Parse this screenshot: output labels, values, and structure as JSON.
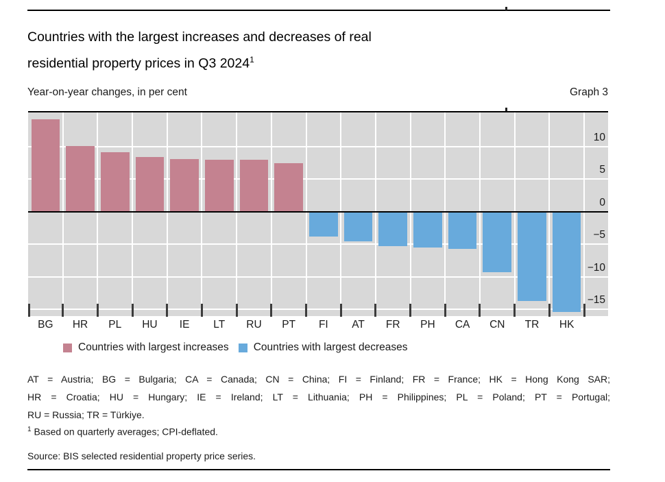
{
  "header": {
    "title_line1": "Countries with the largest increases and decreases of real",
    "title_line2": "residential property prices in Q3 2024",
    "title_footnote_marker": "1",
    "subtitle": "Year-on-year changes, in per cent",
    "graph_label": "Graph 3"
  },
  "chart_data": {
    "type": "bar",
    "title": "Countries with the largest increases and decreases of real residential property prices in Q3 2024",
    "subtitle": "Year-on-year changes, in per cent",
    "categories": [
      "BG",
      "HR",
      "PL",
      "HU",
      "IE",
      "LT",
      "RU",
      "PT",
      "FI",
      "AT",
      "FR",
      "PH",
      "CA",
      "CN",
      "TR",
      "HK"
    ],
    "values": [
      14.1,
      10.1,
      9.1,
      8.4,
      8.1,
      8.0,
      8.0,
      7.4,
      -3.8,
      -4.5,
      -5.3,
      -5.5,
      -5.7,
      -9.3,
      -13.7,
      -15.4
    ],
    "series": [
      {
        "name": "Countries with largest increases",
        "categories": [
          "BG",
          "HR",
          "PL",
          "HU",
          "IE",
          "LT",
          "RU",
          "PT"
        ],
        "values": [
          14.1,
          10.1,
          9.1,
          8.4,
          8.1,
          8.0,
          8.0,
          7.4
        ]
      },
      {
        "name": "Countries with largest decreases",
        "categories": [
          "FI",
          "AT",
          "FR",
          "PH",
          "CA",
          "CN",
          "TR",
          "HK"
        ],
        "values": [
          -3.8,
          -4.5,
          -5.3,
          -5.5,
          -5.7,
          -9.3,
          -13.7,
          -15.4
        ]
      }
    ],
    "ylim": [
      -16.0,
      15.2
    ],
    "yticks": [
      {
        "value": 10,
        "label": "10"
      },
      {
        "value": 5,
        "label": "5"
      },
      {
        "value": 0,
        "label": "0"
      },
      {
        "value": -5,
        "label": "−5"
      },
      {
        "value": -10,
        "label": "−10"
      },
      {
        "value": -15,
        "label": "−15"
      }
    ],
    "grid": true,
    "legend_position": "bottom-left",
    "colors": {
      "increase": "#c48290",
      "decrease": "#68aadc",
      "plot_background": "#d8d8d8",
      "gridline": "#ffffff",
      "zero_line": "#000000",
      "tick": "#3c3c3c"
    }
  },
  "legend": [
    {
      "label": "Countries with largest increases",
      "color": "#c48290"
    },
    {
      "label": "Countries with largest decreases",
      "color": "#68aadc"
    }
  ],
  "notes": {
    "key_lines": [
      "AT = Austria; BG = Bulgaria; CA = Canada; CN = China; FI = Finland; FR = France; HK = Hong Kong SAR;",
      "HR = Croatia; HU = Hungary; IE = Ireland; LT = Lithuania; PH = Philippines; PL = Poland; PT = Portugal;",
      "RU = Russia; TR = Türkiye."
    ],
    "footnote_marker": "1",
    "footnote_text": "Based on quarterly averages; CPI-deflated.",
    "source": "Source: BIS selected residential property price series."
  }
}
